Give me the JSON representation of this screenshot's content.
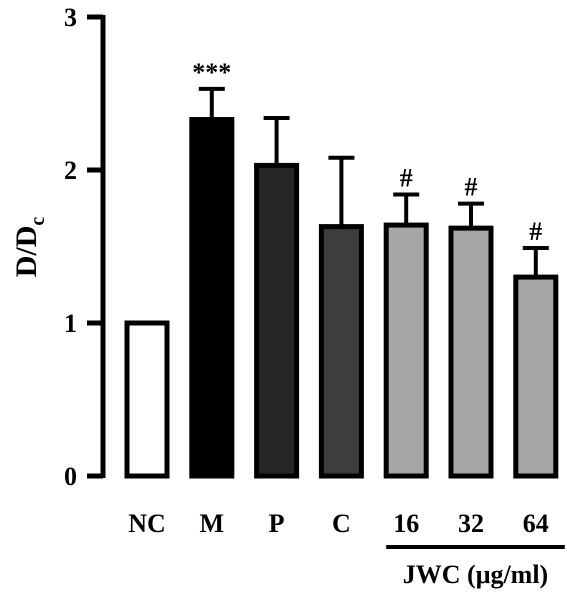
{
  "chart_data": {
    "type": "bar",
    "title": "",
    "xlabel": "",
    "ylabel": "D/D",
    "ylabel_subscript": "c",
    "ylim": [
      0,
      3
    ],
    "yticks": [
      0,
      1,
      2,
      3
    ],
    "categories": [
      "NC",
      "M",
      "P",
      "C",
      "16",
      "32",
      "64"
    ],
    "values": [
      1.0,
      2.33,
      2.03,
      1.63,
      1.64,
      1.62,
      1.3
    ],
    "errors": [
      0,
      0.2,
      0.31,
      0.45,
      0.2,
      0.16,
      0.19
    ],
    "significance": [
      "",
      "***",
      "",
      "",
      "#",
      "#",
      "#"
    ],
    "fill_colors": [
      "#ffffff",
      "#000000",
      "#262626",
      "#3d3d3d",
      "#a6a6a6",
      "#a6a6a6",
      "#a6a6a6"
    ],
    "group": {
      "label": "JWC (μg/ml)",
      "categories": [
        "16",
        "32",
        "64"
      ]
    }
  }
}
